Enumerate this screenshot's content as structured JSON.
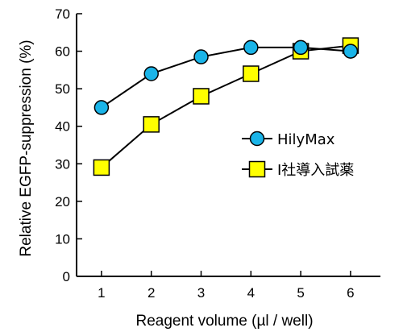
{
  "chart_data": {
    "type": "line",
    "x": [
      1,
      2,
      3,
      4,
      5,
      6
    ],
    "xlim": [
      0.5,
      6.6
    ],
    "ylim": [
      0,
      70
    ],
    "yticks": [
      0,
      10,
      20,
      30,
      40,
      50,
      60,
      70
    ],
    "xticks": [
      1,
      2,
      3,
      4,
      5,
      6
    ],
    "xlabel": "Reagent volume (µl / well)",
    "ylabel": "Relative EGFP-suppression (%)",
    "grid": false,
    "legend_position": "right-middle",
    "series": [
      {
        "name": "HilyMax",
        "marker": "circle",
        "color": "#1ab4e8",
        "values": [
          45,
          54,
          58.5,
          61,
          61,
          60
        ]
      },
      {
        "name": "I社導入試薬",
        "marker": "square",
        "color": "#ffff00",
        "values": [
          29,
          40.5,
          48,
          54,
          60,
          61.5
        ]
      }
    ]
  }
}
